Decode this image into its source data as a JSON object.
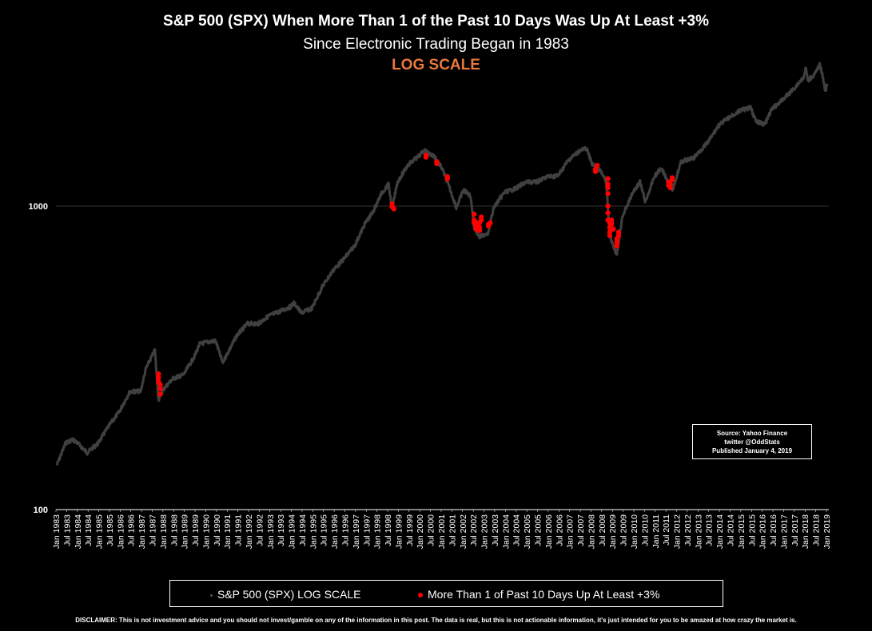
{
  "title": "S&P 500 (SPX) When More Than 1 of the Past 10 Days Was Up At Least +3%",
  "subtitle": "Since Electronic Trading Began in 1983",
  "scale_note": "LOG SCALE",
  "source": {
    "line1": "Source: Yahoo Finance",
    "line2": "twitter @OddStats",
    "line3": "Published January 4, 2019"
  },
  "legend": {
    "series1": "S&P 500 (SPX) LOG SCALE",
    "series2": "More Than 1 of Past 10 Days Up At Least +3%"
  },
  "disclaimer": "DISCLAIMER: This is not investment advice and you should not invest/gamble on any of the information in this post.   The data is real, but this is not actionable information, it's just intended for you to be amazed at how crazy the market is.",
  "colors": {
    "background": "#000000",
    "line": "#404040",
    "highlight": "#ff0000",
    "title_accent": "#e8783c"
  },
  "chart_data": {
    "type": "scatter",
    "yscale": "log",
    "ylim": [
      100,
      3000
    ],
    "y_ticks": [
      100,
      1000
    ],
    "y_tick_labels": [
      "100",
      "1000"
    ],
    "x_range": [
      "Jan 1983",
      "Jan 2019"
    ],
    "x_tick_labels": [
      "Jan 1983",
      "Jul 1983",
      "Jan 1984",
      "Jul 1984",
      "Jan 1985",
      "Jul 1985",
      "Jan 1986",
      "Jul 1986",
      "Jan 1987",
      "Jul 1987",
      "Jan 1988",
      "Jul 1988",
      "Jan 1989",
      "Jul 1989",
      "Jan 1990",
      "Jul 1990",
      "Jan 1991",
      "Jul 1991",
      "Jan 1992",
      "Jul 1992",
      "Jan 1993",
      "Jul 1993",
      "Jan 1994",
      "Jul 1994",
      "Jan 1995",
      "Jul 1995",
      "Jan 1996",
      "Jul 1996",
      "Jan 1997",
      "Jul 1997",
      "Jan 1998",
      "Jul 1998",
      "Jan 1999",
      "Jul 1999",
      "Jan 2000",
      "Jul 2000",
      "Jan 2001",
      "Jul 2001",
      "Jan 2002",
      "Jul 2002",
      "Jan 2003",
      "Jul 2003",
      "Jan 2004",
      "Jul 2004",
      "Jan 2005",
      "Jul 2005",
      "Jan 2006",
      "Jul 2006",
      "Jan 2007",
      "Jul 2007",
      "Jan 2008",
      "Jul 2008",
      "Jan 2009",
      "Jul 2009",
      "Jan 2010",
      "Jul 2010",
      "Jan 2011",
      "Jul 2011",
      "Jan 2012",
      "Jul 2012",
      "Jan 2013",
      "Jul 2013",
      "Jan 2014",
      "Jul 2014",
      "Jan 2015",
      "Jul 2015",
      "Jan 2016",
      "Jul 2016",
      "Jan 2017",
      "Jul 2017",
      "Jan 2018",
      "Jul 2018",
      "Jan 2019"
    ],
    "gridlines": "horizontal at 1000",
    "legend_position": "bottom",
    "series": [
      {
        "name": "S&P 500 (SPX) LOG SCALE",
        "color": "#404040",
        "points": [
          [
            "1983-01",
            140
          ],
          [
            "1983-06",
            166
          ],
          [
            "1983-10",
            170
          ],
          [
            "1984-01",
            165
          ],
          [
            "1984-06",
            154
          ],
          [
            "1984-12",
            165
          ],
          [
            "1985-06",
            188
          ],
          [
            "1985-12",
            210
          ],
          [
            "1986-06",
            245
          ],
          [
            "1986-12",
            245
          ],
          [
            "1987-03",
            292
          ],
          [
            "1987-08",
            335
          ],
          [
            "1987-10",
            230
          ],
          [
            "1988-01",
            250
          ],
          [
            "1988-06",
            270
          ],
          [
            "1988-12",
            278
          ],
          [
            "1989-06",
            318
          ],
          [
            "1989-09",
            350
          ],
          [
            "1989-12",
            355
          ],
          [
            "1990-06",
            360
          ],
          [
            "1990-10",
            305
          ],
          [
            "1991-01",
            330
          ],
          [
            "1991-06",
            375
          ],
          [
            "1991-12",
            410
          ],
          [
            "1992-06",
            410
          ],
          [
            "1992-12",
            435
          ],
          [
            "1993-06",
            450
          ],
          [
            "1993-12",
            466
          ],
          [
            "1994-02",
            480
          ],
          [
            "1994-06",
            445
          ],
          [
            "1994-12",
            460
          ],
          [
            "1995-06",
            545
          ],
          [
            "1995-12",
            615
          ],
          [
            "1996-06",
            670
          ],
          [
            "1996-12",
            740
          ],
          [
            "1997-06",
            880
          ],
          [
            "1997-10",
            950
          ],
          [
            "1998-03",
            1100
          ],
          [
            "1998-07",
            1180
          ],
          [
            "1998-09",
            980
          ],
          [
            "1998-12",
            1200
          ],
          [
            "1999-06",
            1370
          ],
          [
            "1999-12",
            1460
          ],
          [
            "2000-03",
            1525
          ],
          [
            "2000-09",
            1450
          ],
          [
            "2001-01",
            1330
          ],
          [
            "2001-04",
            1200
          ],
          [
            "2001-09",
            990
          ],
          [
            "2002-01",
            1130
          ],
          [
            "2002-05",
            1080
          ],
          [
            "2002-07",
            850
          ],
          [
            "2002-10",
            790
          ],
          [
            "2003-03",
            820
          ],
          [
            "2003-06",
            990
          ],
          [
            "2003-12",
            1110
          ],
          [
            "2004-06",
            1140
          ],
          [
            "2004-12",
            1200
          ],
          [
            "2005-06",
            1200
          ],
          [
            "2005-12",
            1250
          ],
          [
            "2006-06",
            1260
          ],
          [
            "2006-12",
            1420
          ],
          [
            "2007-06",
            1520
          ],
          [
            "2007-10",
            1550
          ],
          [
            "2008-01",
            1380
          ],
          [
            "2008-06",
            1300
          ],
          [
            "2008-09",
            1200
          ],
          [
            "2008-11",
            800
          ],
          [
            "2009-03",
            690
          ],
          [
            "2009-06",
            920
          ],
          [
            "2009-12",
            1110
          ],
          [
            "2010-04",
            1200
          ],
          [
            "2010-07",
            1030
          ],
          [
            "2010-12",
            1250
          ],
          [
            "2011-04",
            1340
          ],
          [
            "2011-10",
            1120
          ],
          [
            "2012-03",
            1400
          ],
          [
            "2012-10",
            1440
          ],
          [
            "2013-06",
            1620
          ],
          [
            "2013-12",
            1840
          ],
          [
            "2014-06",
            1960
          ],
          [
            "2014-12",
            2060
          ],
          [
            "2015-06",
            2110
          ],
          [
            "2015-09",
            1900
          ],
          [
            "2016-02",
            1860
          ],
          [
            "2016-06",
            2090
          ],
          [
            "2016-12",
            2240
          ],
          [
            "2017-06",
            2430
          ],
          [
            "2017-12",
            2670
          ],
          [
            "2018-01",
            2870
          ],
          [
            "2018-02",
            2590
          ],
          [
            "2018-06",
            2720
          ],
          [
            "2018-09",
            2930
          ],
          [
            "2018-12",
            2400
          ],
          [
            "2019-01",
            2530
          ]
        ]
      },
      {
        "name": "More Than 1 of Past 10 Days Up At Least +3%",
        "color": "#ff0000",
        "points": [
          [
            "1987-10",
            280
          ],
          [
            "1987-10",
            272
          ],
          [
            "1987-10",
            264
          ],
          [
            "1987-11",
            258
          ],
          [
            "1987-11",
            250
          ],
          [
            "1987-11",
            240
          ],
          [
            "1998-09",
            1015
          ],
          [
            "1998-09",
            995
          ],
          [
            "1998-10",
            980
          ],
          [
            "2000-04",
            1470
          ],
          [
            "2000-04",
            1450
          ],
          [
            "2000-10",
            1400
          ],
          [
            "2000-10",
            1380
          ],
          [
            "2001-04",
            1250
          ],
          [
            "2001-04",
            1230
          ],
          [
            "2002-07",
            940
          ],
          [
            "2002-07",
            900
          ],
          [
            "2002-07",
            880
          ],
          [
            "2002-08",
            860
          ],
          [
            "2002-08",
            840
          ],
          [
            "2002-09",
            880
          ],
          [
            "2002-10",
            830
          ],
          [
            "2002-10",
            850
          ],
          [
            "2002-10",
            880
          ],
          [
            "2002-11",
            900
          ],
          [
            "2002-11",
            920
          ],
          [
            "2003-03",
            870
          ],
          [
            "2003-03",
            860
          ],
          [
            "2003-04",
            880
          ],
          [
            "2008-03",
            1320
          ],
          [
            "2008-03",
            1300
          ],
          [
            "2008-04",
            1360
          ],
          [
            "2008-10",
            1230
          ],
          [
            "2008-10",
            1180
          ],
          [
            "2008-10",
            1150
          ],
          [
            "2008-10",
            1100
          ],
          [
            "2008-10",
            1000
          ],
          [
            "2008-10",
            950
          ],
          [
            "2008-10",
            900
          ],
          [
            "2008-11",
            880
          ],
          [
            "2008-11",
            850
          ],
          [
            "2008-11",
            820
          ],
          [
            "2008-11",
            800
          ],
          [
            "2008-12",
            870
          ],
          [
            "2008-12",
            900
          ],
          [
            "2008-12",
            880
          ],
          [
            "2009-01",
            840
          ],
          [
            "2009-03",
            760
          ],
          [
            "2009-03",
            740
          ],
          [
            "2009-03",
            780
          ],
          [
            "2009-04",
            820
          ],
          [
            "2009-04",
            800
          ],
          [
            "2011-08",
            1200
          ],
          [
            "2011-08",
            1170
          ],
          [
            "2011-09",
            1150
          ],
          [
            "2011-09",
            1180
          ],
          [
            "2011-10",
            1220
          ],
          [
            "2011-10",
            1240
          ]
        ]
      }
    ]
  }
}
